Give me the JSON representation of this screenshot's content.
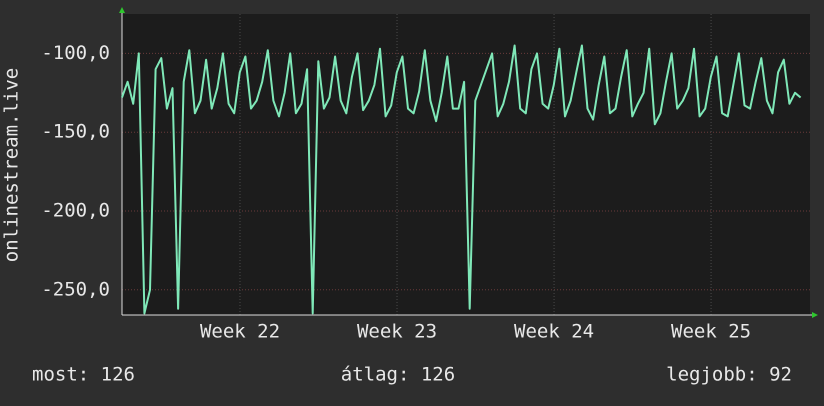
{
  "chart_data": {
    "type": "line",
    "ylabel": "onlinestream.live",
    "stats": [
      "most: 126",
      "átlag: 126",
      "legjobb: 92"
    ],
    "xlim": [
      0,
      30.67
    ],
    "xticks": [
      {
        "value": 5.26,
        "label": "Week 22"
      },
      {
        "value": 12.26,
        "label": "Week 23"
      },
      {
        "value": 19.26,
        "label": "Week 24"
      },
      {
        "value": 26.26,
        "label": "Week 25"
      }
    ],
    "ylim": [
      -266,
      -75
    ],
    "yticks": [
      {
        "value": -100,
        "label": "-100,0"
      },
      {
        "value": -150,
        "label": "-150,0"
      },
      {
        "value": -200,
        "label": "-200,0"
      },
      {
        "value": -250,
        "label": "-250,0"
      }
    ],
    "grid": true,
    "x": [
      0,
      0.25,
      0.5,
      0.75,
      1,
      1.25,
      1.5,
      1.75,
      2,
      2.25,
      2.5,
      2.75,
      3,
      3.25,
      3.5,
      3.75,
      4,
      4.25,
      4.5,
      4.75,
      5,
      5.25,
      5.5,
      5.75,
      6,
      6.25,
      6.5,
      6.75,
      7,
      7.25,
      7.5,
      7.75,
      8,
      8.25,
      8.5,
      8.75,
      9,
      9.25,
      9.5,
      9.75,
      10,
      10.25,
      10.5,
      10.75,
      11,
      11.25,
      11.5,
      11.75,
      12,
      12.25,
      12.5,
      12.75,
      13,
      13.25,
      13.5,
      13.75,
      14,
      14.25,
      14.5,
      14.75,
      15,
      15.25,
      15.5,
      15.75,
      16,
      16.25,
      16.5,
      16.75,
      17,
      17.25,
      17.5,
      17.75,
      18,
      18.25,
      18.5,
      18.75,
      19,
      19.25,
      19.5,
      19.75,
      20,
      20.25,
      20.5,
      20.75,
      21,
      21.25,
      21.5,
      21.75,
      22,
      22.25,
      22.5,
      22.75,
      23,
      23.25,
      23.5,
      23.75,
      24,
      24.25,
      24.5,
      24.75,
      25,
      25.25,
      25.5,
      25.75,
      26,
      26.25,
      26.5,
      26.75,
      27,
      27.25,
      27.5,
      27.75,
      28,
      28.25,
      28.5,
      28.75,
      29,
      29.25,
      29.5,
      29.75,
      30,
      30.25
    ],
    "series": [
      {
        "name": "onlinestream.live",
        "color": "#7fe8b8",
        "values": [
          -128,
          -118,
          -132,
          -100,
          -265,
          -250,
          -110,
          -103,
          -135,
          -122,
          -262,
          -118,
          -98,
          -138,
          -130,
          -104,
          -135,
          -122,
          -100,
          -132,
          -138,
          -112,
          -102,
          -135,
          -130,
          -118,
          -98,
          -130,
          -140,
          -125,
          -100,
          -138,
          -132,
          -110,
          -265,
          -105,
          -135,
          -128,
          -102,
          -130,
          -138,
          -115,
          -100,
          -136,
          -130,
          -120,
          -97,
          -140,
          -133,
          -112,
          -102,
          -135,
          -138,
          -124,
          -98,
          -130,
          -143,
          -125,
          -102,
          -135,
          -135,
          -118,
          -262,
          -130,
          -120,
          -110,
          -100,
          -140,
          -132,
          -118,
          -95,
          -135,
          -138,
          -110,
          -100,
          -132,
          -135,
          -120,
          -97,
          -140,
          -130,
          -112,
          -95,
          -135,
          -142,
          -120,
          -102,
          -138,
          -135,
          -115,
          -98,
          -140,
          -132,
          -125,
          -97,
          -145,
          -138,
          -118,
          -100,
          -135,
          -130,
          -122,
          -97,
          -140,
          -135,
          -115,
          -102,
          -138,
          -140,
          -120,
          -100,
          -133,
          -135,
          -118,
          -103,
          -130,
          -138,
          -112,
          -104,
          -132,
          -125,
          -128
        ]
      }
    ]
  }
}
